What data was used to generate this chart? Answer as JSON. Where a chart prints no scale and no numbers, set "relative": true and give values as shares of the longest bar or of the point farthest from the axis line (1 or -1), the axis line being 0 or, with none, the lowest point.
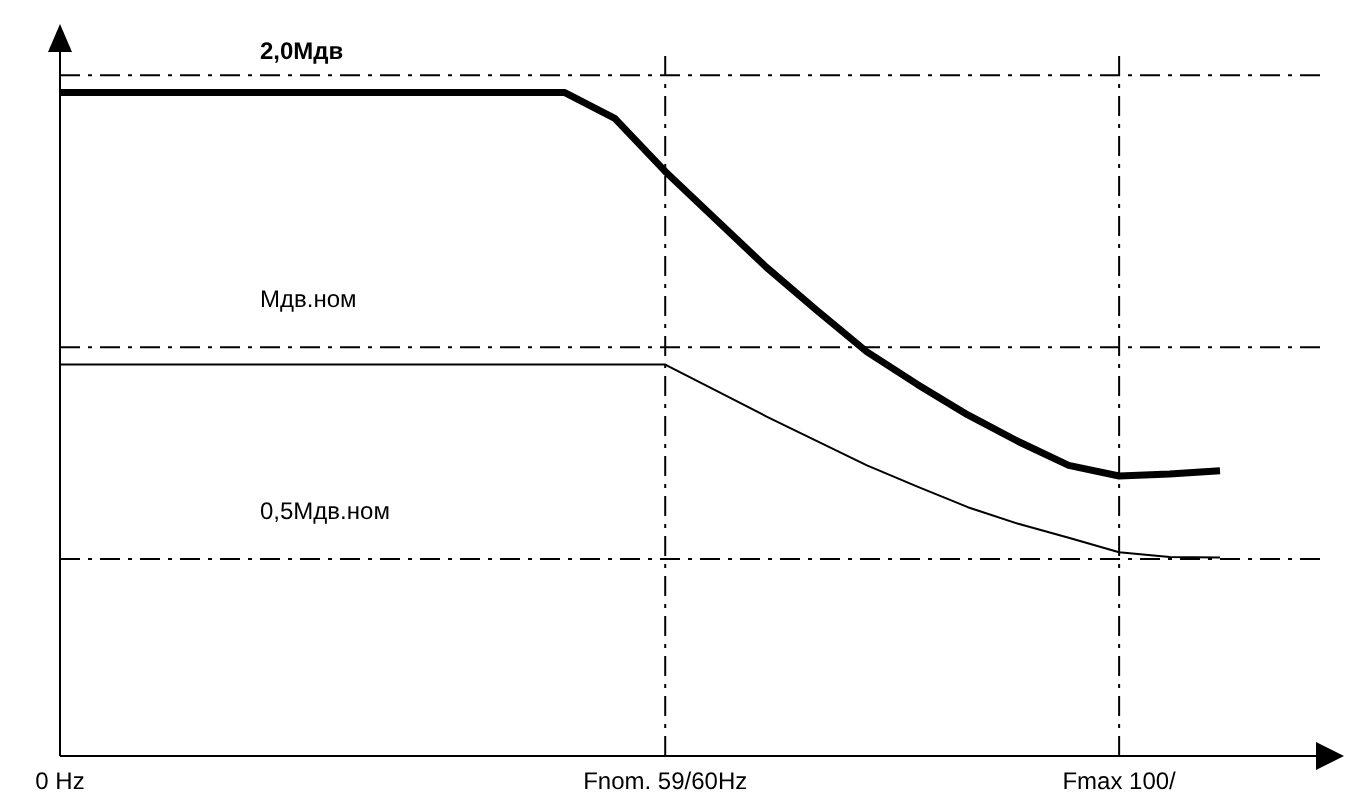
{
  "chart_data": {
    "type": "line",
    "relative": true,
    "categories": [
      "0 Hz",
      null,
      null,
      null,
      null,
      null,
      null,
      null,
      null,
      null,
      null,
      null,
      "Fnom. 59/60Hz",
      null,
      null,
      null,
      null,
      null,
      null,
      null,
      null,
      "Fmax 100/",
      null,
      null
    ],
    "tick_labels": "x",
    "marker": "none",
    "series": [
      {
        "color": "#000000",
        "values": [
          1,
          1,
          1,
          1,
          1,
          1,
          1,
          1,
          1,
          1,
          1,
          0.961,
          0.881,
          0.809,
          0.737,
          0.672,
          0.609,
          0.56,
          0.514,
          0.474,
          0.438,
          0.422,
          0.425,
          0.43
        ]
      },
      {
        "color": "#000000",
        "values": [
          0.59,
          0.59,
          0.59,
          0.59,
          0.59,
          0.59,
          0.59,
          0.59,
          0.59,
          0.59,
          0.59,
          0.59,
          0.59,
          0.551,
          0.512,
          0.475,
          0.438,
          0.406,
          0.375,
          0.35,
          0.329,
          0.307,
          0.3,
          0.299
        ]
      }
    ],
    "ref_lines": [
      {
        "axis": "y",
        "value": 1.026,
        "label": "2,0Мдв",
        "line_style": "dashed"
      },
      {
        "axis": "y",
        "value": 0.616,
        "label": "Мдв.ном",
        "line_style": "dashed"
      },
      {
        "axis": "y",
        "value": 0.297,
        "label": "0,5Мдв.ном",
        "line_style": "dashed"
      },
      {
        "axis": "x",
        "value": "Fnom. 59/60Hz",
        "line_style": "dashed"
      },
      {
        "axis": "x",
        "value": "Fmax 100/",
        "line_style": "dashed"
      }
    ]
  }
}
